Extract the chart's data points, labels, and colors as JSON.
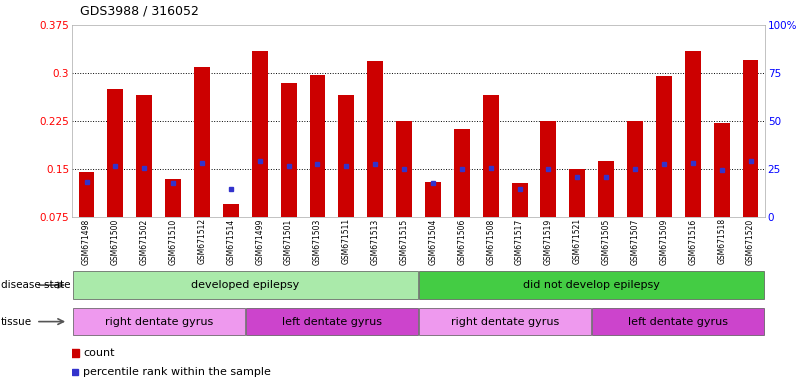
{
  "title": "GDS3988 / 316052",
  "samples": [
    "GSM671498",
    "GSM671500",
    "GSM671502",
    "GSM671510",
    "GSM671512",
    "GSM671514",
    "GSM671499",
    "GSM671501",
    "GSM671503",
    "GSM671511",
    "GSM671513",
    "GSM671515",
    "GSM671504",
    "GSM671506",
    "GSM671508",
    "GSM671517",
    "GSM671519",
    "GSM671521",
    "GSM671505",
    "GSM671507",
    "GSM671509",
    "GSM671516",
    "GSM671518",
    "GSM671520"
  ],
  "counts": [
    0.145,
    0.275,
    0.265,
    0.135,
    0.31,
    0.095,
    0.335,
    0.285,
    0.297,
    0.265,
    0.318,
    0.225,
    0.13,
    0.212,
    0.265,
    0.128,
    0.225,
    0.15,
    0.163,
    0.225,
    0.295,
    0.335,
    0.222,
    0.32
  ],
  "percentile_ranks": [
    0.13,
    0.155,
    0.152,
    0.128,
    0.16,
    0.118,
    0.162,
    0.155,
    0.158,
    0.155,
    0.158,
    0.15,
    0.128,
    0.15,
    0.152,
    0.118,
    0.15,
    0.138,
    0.138,
    0.15,
    0.158,
    0.16,
    0.148,
    0.163
  ],
  "bar_color": "#cc0000",
  "marker_color": "#3333cc",
  "plot_bg": "#ffffff",
  "ylim": [
    0.075,
    0.375
  ],
  "yticks": [
    0.075,
    0.15,
    0.225,
    0.3,
    0.375
  ],
  "ytick_labels": [
    "0.075",
    "0.15",
    "0.225",
    "0.3",
    "0.375"
  ],
  "y2ticks_pct": [
    0,
    25,
    50,
    75,
    100
  ],
  "y2tick_labels": [
    "0",
    "25",
    "50",
    "75",
    "100%"
  ],
  "grid_values": [
    0.15,
    0.225,
    0.3
  ],
  "disease_state_groups": [
    {
      "label": "developed epilepsy",
      "start": 0,
      "end": 12,
      "color": "#aaeaaa"
    },
    {
      "label": "did not develop epilepsy",
      "start": 12,
      "end": 24,
      "color": "#44cc44"
    }
  ],
  "tissue_groups": [
    {
      "label": "right dentate gyrus",
      "start": 0,
      "end": 6,
      "color": "#ee99ee"
    },
    {
      "label": "left dentate gyrus",
      "start": 6,
      "end": 12,
      "color": "#cc44cc"
    },
    {
      "label": "right dentate gyrus",
      "start": 12,
      "end": 18,
      "color": "#ee99ee"
    },
    {
      "label": "left dentate gyrus",
      "start": 18,
      "end": 24,
      "color": "#cc44cc"
    }
  ],
  "disease_label": "disease state",
  "tissue_label": "tissue",
  "legend_count_label": "count",
  "legend_pct_label": "percentile rank within the sample"
}
